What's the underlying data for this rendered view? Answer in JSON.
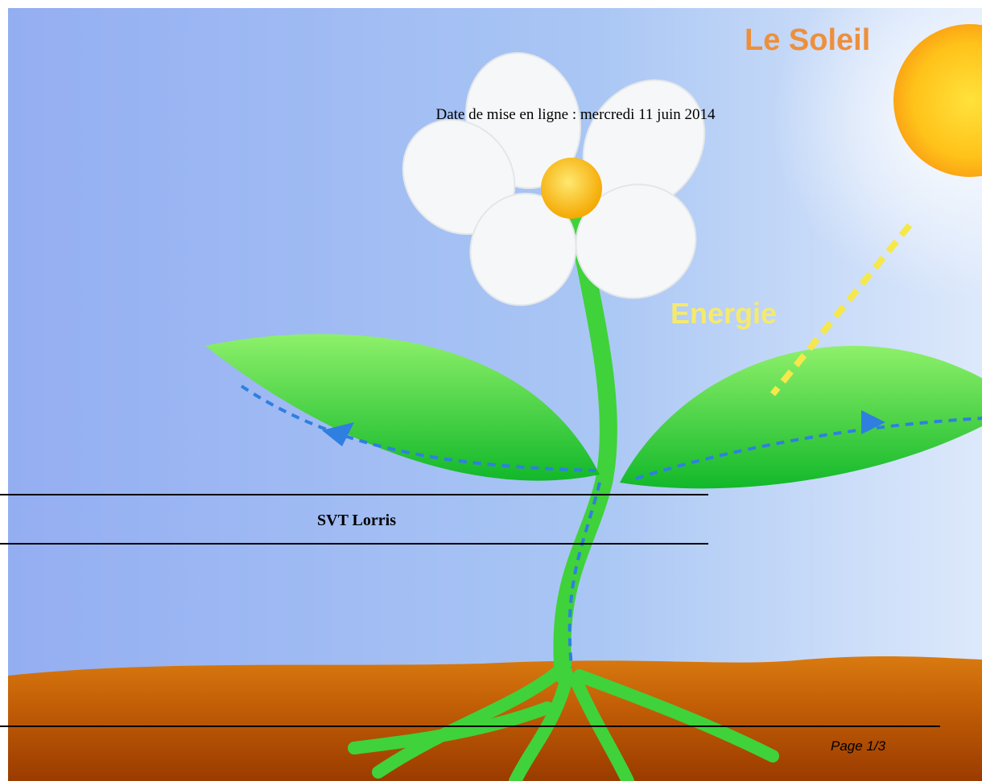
{
  "illustration": {
    "sun_label": "Le Soleil",
    "energy_label": "Energie"
  },
  "header": {
    "date": "Date de mise en ligne : mercredi 11 juin 2014"
  },
  "title": "SVT Lorris",
  "footer": {
    "page": "Page 1/3"
  }
}
